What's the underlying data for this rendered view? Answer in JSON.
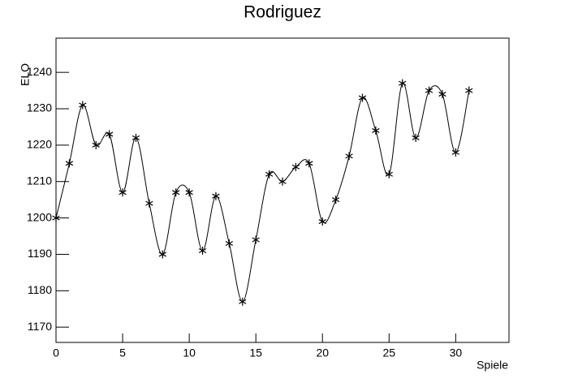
{
  "chart_data": {
    "type": "line",
    "title": "Rodriguez",
    "x_label": "Spiele",
    "y_label": "ELO",
    "x": [
      0,
      1,
      2,
      3,
      4,
      5,
      6,
      7,
      8,
      9,
      10,
      11,
      12,
      13,
      14,
      15,
      16,
      17,
      18,
      19,
      20,
      21,
      22,
      23,
      24,
      25,
      26,
      27,
      28,
      29,
      30,
      31
    ],
    "values": [
      1200,
      1215,
      1231,
      1220,
      1223,
      1207,
      1222,
      1204,
      1190,
      1207,
      1207,
      1191,
      1206,
      1193,
      1177,
      1194,
      1212,
      1210,
      1214,
      1215,
      1199,
      1205,
      1217,
      1233,
      1224,
      1212,
      1237,
      1222,
      1235,
      1234,
      1218,
      1235
    ],
    "color": "#000000",
    "xlim": [
      0,
      34
    ],
    "xticks": [
      0,
      5,
      10,
      15,
      20,
      25,
      30
    ],
    "ylim": [
      1165.8,
      1249.4
    ],
    "yticks": [
      1170,
      1180,
      1190,
      1200,
      1210,
      1220,
      1230,
      1240
    ]
  }
}
